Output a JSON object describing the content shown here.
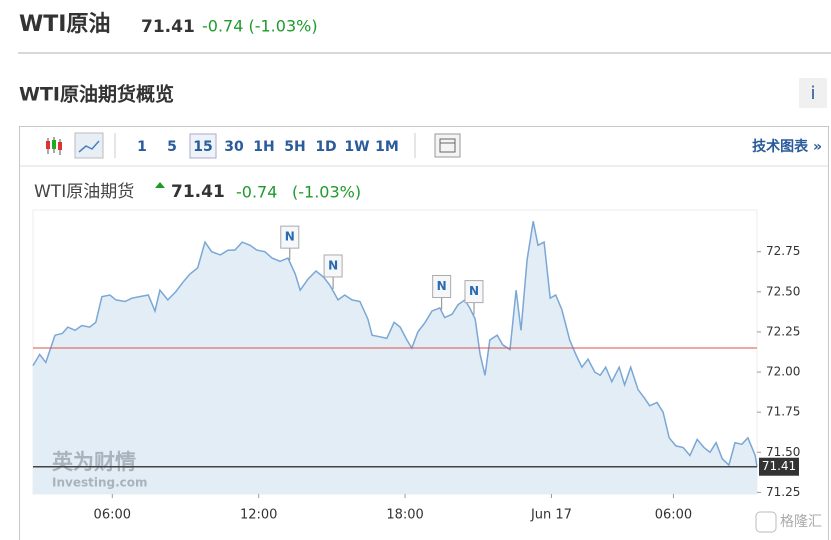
{
  "header": {
    "name": "WTI原油",
    "price": "71.41",
    "change": "-0.74 (-1.03%)"
  },
  "section": {
    "title": "WTI原油期货概览",
    "info": "i"
  },
  "toolbar": {
    "intervals": [
      "1",
      "5",
      "15",
      "30",
      "1H",
      "5H",
      "1D",
      "1W",
      "1M"
    ],
    "active": "15",
    "link": "技术图表 »"
  },
  "chart_data": {
    "type": "line",
    "title": "WTI原油期货",
    "last_price": "71.41",
    "change": "-0.74",
    "change_pct": "(-1.03%)",
    "color": "#7aa7d6",
    "fill": "#e3edf5",
    "x": [
      0,
      1.1,
      2.1,
      3.6,
      4.8,
      5.7,
      6.9,
      8.0,
      9.3,
      10.3,
      11.3,
      12.6,
      13.6,
      15.1,
      16.2,
      17.5,
      18.9,
      20.0,
      20.8,
      22.1,
      23.4,
      24.6,
      25.7,
      27.0,
      28.2,
      29.3,
      30.7,
      32.0,
      33.1,
      34.3,
      35.6,
      36.7,
      38.0,
      39.2,
      40.5,
      41.8,
      43.0,
      43.8,
      45.1,
      46.4,
      47.7,
      48.7,
      50.0,
      51.1,
      52.3,
      53.6,
      54.9,
      55.6,
      56.9,
      58.0,
      59.2,
      60.2,
      61.3,
      62.1,
      63.1,
      64.3,
      65.4,
      66.7,
      67.5,
      68.7,
      69.7,
      70.8,
      71.6,
      72.5,
      73.3,
      74.1,
      74.9,
      76.1,
      77.0,
      78.2,
      79.2,
      80.0,
      81.0,
      82.0,
      82.8,
      83.8,
      84.8,
      85.7,
      86.7,
      88.0,
      89.0,
      90.0,
      91.0,
      92.1,
      93.0,
      93.9,
      94.9,
      96.1,
      97.0,
      98.0,
      99.2,
      100.2,
      101.1,
      102.3,
      103.3,
      104.3,
      105.4,
      106.6,
      107.7,
      108.9,
      110.0,
      111.0,
      112.0,
      113.0,
      114.1,
      115.1,
      116.2,
      117.2,
      118.4,
      118.7
    ],
    "values": [
      72.04,
      72.11,
      72.06,
      72.23,
      72.24,
      72.28,
      72.26,
      72.29,
      72.28,
      72.31,
      72.47,
      72.48,
      72.45,
      72.44,
      72.46,
      72.47,
      72.48,
      72.38,
      72.51,
      72.45,
      72.5,
      72.56,
      72.61,
      72.65,
      72.81,
      72.75,
      72.73,
      72.76,
      72.76,
      72.81,
      72.79,
      72.76,
      72.75,
      72.71,
      72.69,
      72.71,
      72.61,
      72.51,
      72.58,
      72.63,
      72.59,
      72.54,
      72.45,
      72.48,
      72.45,
      72.44,
      72.33,
      72.23,
      72.22,
      72.21,
      72.31,
      72.28,
      72.2,
      72.15,
      72.25,
      72.31,
      72.38,
      72.4,
      72.34,
      72.36,
      72.42,
      72.45,
      72.4,
      72.33,
      72.11,
      71.98,
      72.2,
      72.23,
      72.17,
      72.14,
      72.51,
      72.26,
      72.7,
      72.94,
      72.79,
      72.81,
      72.46,
      72.48,
      72.39,
      72.2,
      72.11,
      72.03,
      72.08,
      72.0,
      71.98,
      72.03,
      71.94,
      72.03,
      71.92,
      72.03,
      71.89,
      71.84,
      71.79,
      71.81,
      71.75,
      71.59,
      71.54,
      71.53,
      71.48,
      71.58,
      71.53,
      71.5,
      71.56,
      71.46,
      71.42,
      71.56,
      71.55,
      71.59,
      71.48,
      71.41
    ],
    "xlim": [
      0,
      118.7
    ],
    "ylim": [
      71.24,
      73.01
    ],
    "xticks": [
      {
        "value": 13,
        "label": "06:00"
      },
      {
        "value": 37,
        "label": "12:00"
      },
      {
        "value": 61,
        "label": "18:00"
      },
      {
        "value": 85,
        "label": "Jun 17"
      },
      {
        "value": 105,
        "label": "06:00"
      }
    ],
    "yticks": [
      72.75,
      {
        "value": 72.5,
        "label": "72.50"
      },
      72.25,
      {
        "value": 72,
        "label": "72.00"
      },
      71.75,
      {
        "value": 71.5,
        "label": "71.50"
      },
      71.25
    ],
    "prev_close": 72.15,
    "prev_close_color": "#d9534f",
    "last_line": {
      "value": 71.41,
      "label": "71.41"
    },
    "annotations": [
      {
        "x": 42.1,
        "label": "N"
      },
      {
        "x": 49.2,
        "label": "N"
      },
      {
        "x": 67.0,
        "label": "N"
      },
      {
        "x": 72.3,
        "label": "N"
      }
    ],
    "watermark": {
      "cn": "英为财情",
      "en": "Investing.com"
    }
  },
  "footer": {
    "logo": "格隆汇"
  }
}
